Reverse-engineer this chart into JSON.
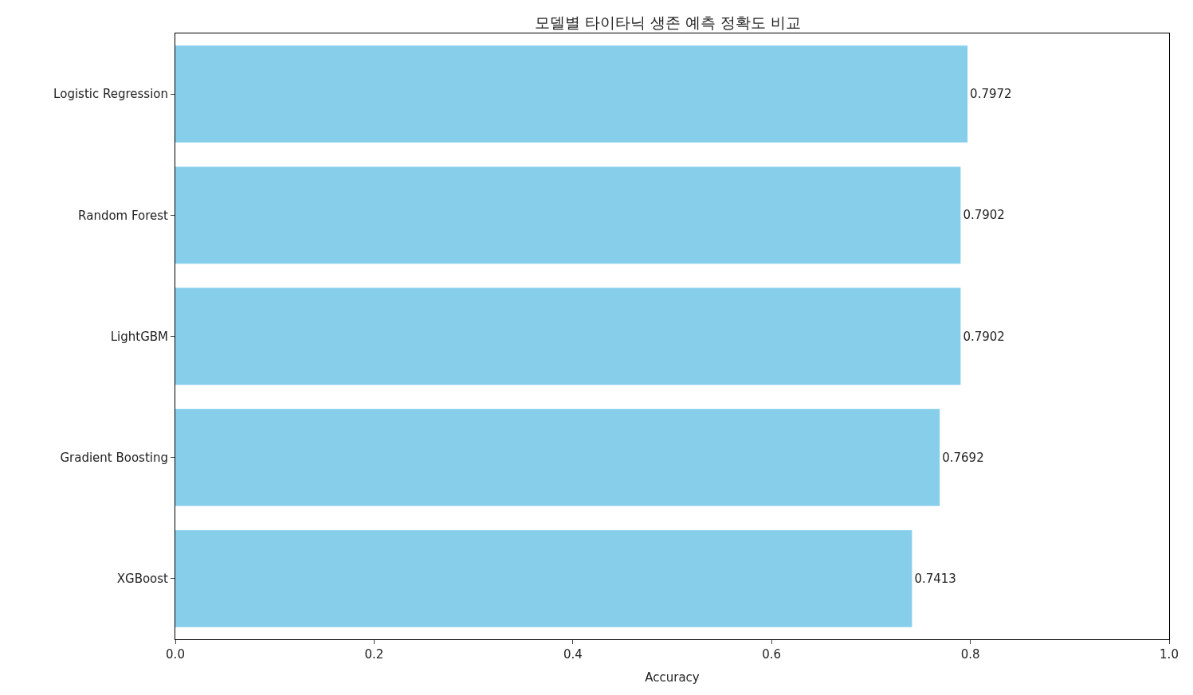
{
  "chart_data": {
    "type": "bar",
    "orientation": "horizontal",
    "title": "모델별 타이타닉 생존 예측 정확도 비교",
    "xlabel": "Accuracy",
    "categories": [
      "Logistic Regression",
      "Random Forest",
      "LightGBM",
      "Gradient Boosting",
      "XGBoost"
    ],
    "values": [
      0.7972,
      0.7902,
      0.7902,
      0.7692,
      0.7413
    ],
    "color": "#87ceeb",
    "data_labels": true,
    "xlim": [
      0,
      1
    ],
    "xticks": [
      {
        "value": 0,
        "label": "0.0"
      },
      {
        "value": 0.2,
        "label": "0.2"
      },
      {
        "value": 0.4,
        "label": "0.4"
      },
      {
        "value": 0.6,
        "label": "0.6"
      },
      {
        "value": 0.8,
        "label": "0.8"
      },
      {
        "value": 1,
        "label": "1.0"
      }
    ]
  }
}
